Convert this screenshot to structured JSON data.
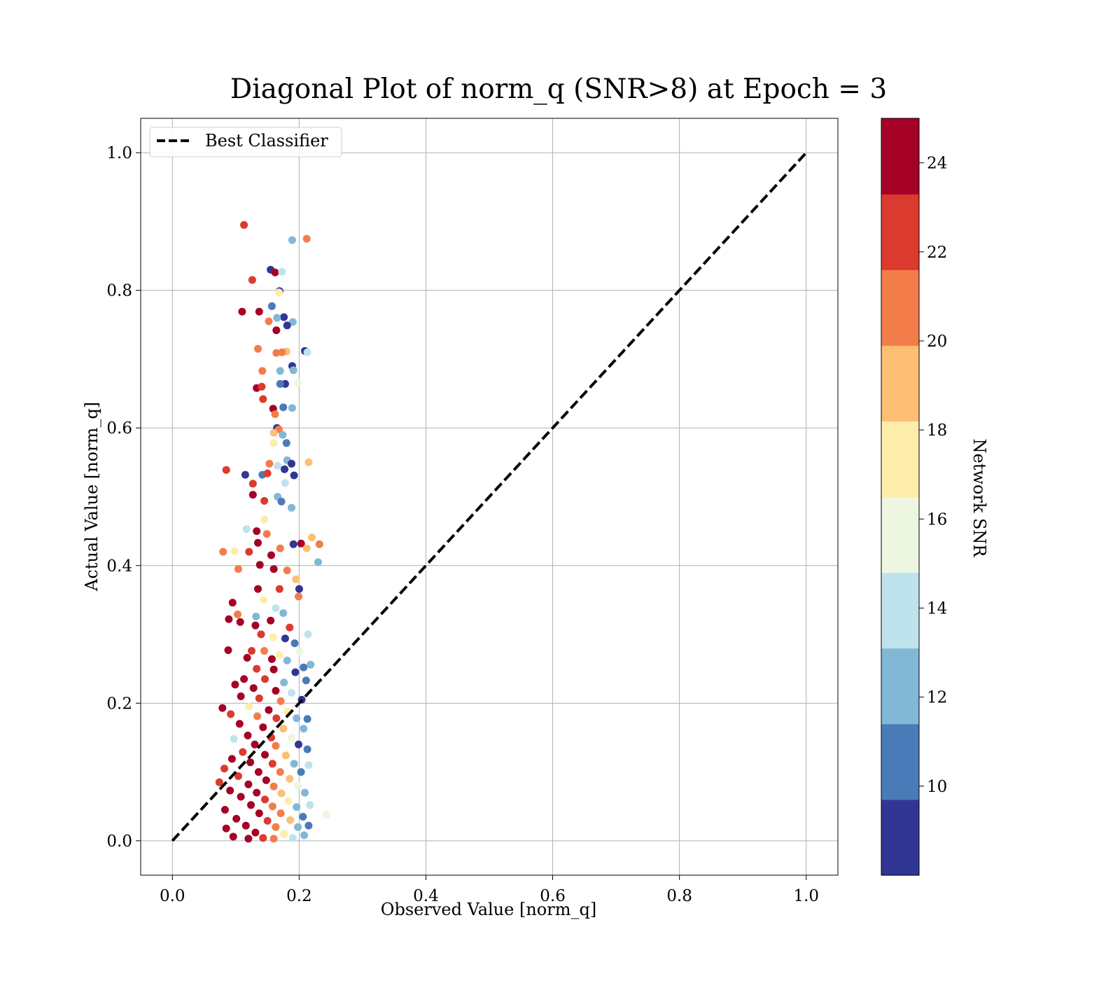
{
  "chart_data": {
    "type": "scatter",
    "title": "Diagonal Plot of norm_q (SNR>8) at Epoch = 3",
    "xlabel": "Observed Value [norm_q]",
    "ylabel": "Actual Value [norm_q]",
    "xlim": [
      -0.05,
      1.05
    ],
    "ylim": [
      -0.05,
      1.05
    ],
    "x_ticks": [
      0.0,
      0.2,
      0.4,
      0.6,
      0.8,
      1.0
    ],
    "y_ticks": [
      0.0,
      0.2,
      0.4,
      0.6,
      0.8,
      1.0
    ],
    "x_tick_labels": [
      "0.0",
      "0.2",
      "0.4",
      "0.6",
      "0.8",
      "1.0"
    ],
    "y_tick_labels": [
      "0.0",
      "0.2",
      "0.4",
      "0.6",
      "0.8",
      "1.0"
    ],
    "grid": true,
    "legend": {
      "placement": "top-left",
      "entries": [
        {
          "label": "Best Classifier",
          "style": "dashed",
          "color": "#000000"
        }
      ]
    },
    "reference_line": {
      "label": "Best Classifier",
      "points": [
        [
          0.0,
          0.0
        ],
        [
          1.0,
          1.0
        ]
      ]
    },
    "colorbar": {
      "label": "Network SNR",
      "range": [
        8,
        25
      ],
      "ticks": [
        10,
        12,
        14,
        16,
        18,
        20,
        22,
        24
      ],
      "tick_labels": [
        "10",
        "12",
        "14",
        "16",
        "18",
        "20",
        "22",
        "24"
      ],
      "colors": [
        "#313695",
        "#4a7ab7",
        "#82b7d6",
        "#bee3ec",
        "#ecf6e1",
        "#fdedaa",
        "#fcbf73",
        "#f37d4a",
        "#db3a2e",
        "#a50026"
      ]
    },
    "series": [
      {
        "x_range_dense": [
          0.08,
          0.22
        ],
        "points": [
          [
            0.113,
            0.895,
            22.5
          ],
          [
            0.212,
            0.875,
            20.5
          ],
          [
            0.189,
            0.873,
            12.5
          ],
          [
            0.155,
            0.83,
            9
          ],
          [
            0.162,
            0.826,
            24.5
          ],
          [
            0.173,
            0.827,
            14.5
          ],
          [
            0.126,
            0.815,
            22.5
          ],
          [
            0.169,
            0.799,
            9
          ],
          [
            0.168,
            0.797,
            17.5
          ],
          [
            0.157,
            0.777,
            10.5
          ],
          [
            0.11,
            0.769,
            24.5
          ],
          [
            0.137,
            0.769,
            24.5
          ],
          [
            0.176,
            0.761,
            9
          ],
          [
            0.165,
            0.76,
            13
          ],
          [
            0.19,
            0.754,
            12.5
          ],
          [
            0.152,
            0.755,
            20.5
          ],
          [
            0.181,
            0.749,
            9
          ],
          [
            0.164,
            0.742,
            24.5
          ],
          [
            0.135,
            0.715,
            20.5
          ],
          [
            0.209,
            0.712,
            9
          ],
          [
            0.213,
            0.71,
            14
          ],
          [
            0.18,
            0.711,
            19.5
          ],
          [
            0.173,
            0.71,
            20.5
          ],
          [
            0.164,
            0.709,
            20.5
          ],
          [
            0.189,
            0.69,
            9
          ],
          [
            0.17,
            0.683,
            12.5
          ],
          [
            0.191,
            0.684,
            12.5
          ],
          [
            0.142,
            0.683,
            20.5
          ],
          [
            0.198,
            0.665,
            16
          ],
          [
            0.178,
            0.664,
            9
          ],
          [
            0.17,
            0.664,
            10
          ],
          [
            0.133,
            0.658,
            24.5
          ],
          [
            0.141,
            0.66,
            22.5
          ],
          [
            0.143,
            0.642,
            22.5
          ],
          [
            0.175,
            0.63,
            10
          ],
          [
            0.189,
            0.629,
            12.5
          ],
          [
            0.159,
            0.628,
            24.5
          ],
          [
            0.162,
            0.62,
            20.5
          ],
          [
            0.165,
            0.6,
            9
          ],
          [
            0.168,
            0.598,
            20.5
          ],
          [
            0.16,
            0.593,
            19.5
          ],
          [
            0.174,
            0.59,
            12.5
          ],
          [
            0.18,
            0.578,
            10.5
          ],
          [
            0.16,
            0.578,
            17.5
          ],
          [
            0.215,
            0.55,
            19.5
          ],
          [
            0.181,
            0.553,
            12.5
          ],
          [
            0.153,
            0.548,
            20.5
          ],
          [
            0.166,
            0.545,
            14.5
          ],
          [
            0.188,
            0.548,
            9
          ],
          [
            0.085,
            0.539,
            22.5
          ],
          [
            0.115,
            0.532,
            9
          ],
          [
            0.142,
            0.532,
            11
          ],
          [
            0.15,
            0.534,
            22.5
          ],
          [
            0.177,
            0.54,
            9
          ],
          [
            0.192,
            0.531,
            9
          ],
          [
            0.127,
            0.519,
            22.5
          ],
          [
            0.178,
            0.52,
            14.5
          ],
          [
            0.127,
            0.503,
            24.5
          ],
          [
            0.145,
            0.494,
            22.5
          ],
          [
            0.166,
            0.5,
            12.5
          ],
          [
            0.188,
            0.484,
            12.5
          ],
          [
            0.172,
            0.493,
            10
          ],
          [
            0.145,
            0.467,
            17.5
          ],
          [
            0.117,
            0.453,
            14
          ],
          [
            0.133,
            0.45,
            24.5
          ],
          [
            0.149,
            0.446,
            20.5
          ],
          [
            0.191,
            0.431,
            9
          ],
          [
            0.203,
            0.432,
            24.5
          ],
          [
            0.22,
            0.441,
            19.5
          ],
          [
            0.232,
            0.431,
            20.5
          ],
          [
            0.23,
            0.405,
            12.5
          ],
          [
            0.08,
            0.42,
            20.5
          ],
          [
            0.098,
            0.421,
            17.5
          ],
          [
            0.121,
            0.42,
            22.5
          ],
          [
            0.135,
            0.433,
            24.5
          ],
          [
            0.156,
            0.415,
            24.5
          ],
          [
            0.17,
            0.425,
            20.5
          ],
          [
            0.212,
            0.425,
            19.5
          ],
          [
            0.138,
            0.401,
            24.5
          ],
          [
            0.16,
            0.395,
            24.5
          ],
          [
            0.104,
            0.395,
            20.5
          ],
          [
            0.181,
            0.393,
            20.5
          ],
          [
            0.195,
            0.38,
            19.5
          ],
          [
            0.169,
            0.366,
            22.5
          ],
          [
            0.135,
            0.366,
            24.5
          ],
          [
            0.2,
            0.366,
            9
          ],
          [
            0.144,
            0.35,
            17.5
          ],
          [
            0.095,
            0.346,
            24.5
          ],
          [
            0.199,
            0.355,
            20.5
          ],
          [
            0.163,
            0.338,
            14
          ],
          [
            0.175,
            0.331,
            12.5
          ],
          [
            0.103,
            0.329,
            20.5
          ],
          [
            0.132,
            0.326,
            13
          ],
          [
            0.155,
            0.32,
            24.5
          ],
          [
            0.089,
            0.322,
            24.5
          ],
          [
            0.107,
            0.318,
            24.5
          ],
          [
            0.131,
            0.313,
            24.5
          ],
          [
            0.185,
            0.31,
            22.5
          ],
          [
            0.214,
            0.3,
            14
          ],
          [
            0.14,
            0.3,
            22.5
          ],
          [
            0.159,
            0.296,
            17.5
          ],
          [
            0.178,
            0.294,
            9
          ],
          [
            0.193,
            0.287,
            10.5
          ],
          [
            0.088,
            0.277,
            24.5
          ],
          [
            0.125,
            0.276,
            22.5
          ],
          [
            0.145,
            0.276,
            20.5
          ],
          [
            0.169,
            0.27,
            17.5
          ],
          [
            0.201,
            0.275,
            15
          ],
          [
            0.218,
            0.256,
            12.5
          ],
          [
            0.118,
            0.266,
            24.5
          ],
          [
            0.157,
            0.264,
            24.5
          ],
          [
            0.181,
            0.262,
            12.5
          ],
          [
            0.207,
            0.252,
            11
          ],
          [
            0.133,
            0.25,
            22.5
          ],
          [
            0.16,
            0.249,
            24.5
          ],
          [
            0.194,
            0.245,
            9
          ],
          [
            0.113,
            0.235,
            24.5
          ],
          [
            0.146,
            0.235,
            22.5
          ],
          [
            0.176,
            0.23,
            12.5
          ],
          [
            0.211,
            0.233,
            10
          ],
          [
            0.099,
            0.227,
            24.5
          ],
          [
            0.128,
            0.222,
            24.5
          ],
          [
            0.163,
            0.218,
            24.5
          ],
          [
            0.188,
            0.215,
            14
          ],
          [
            0.108,
            0.21,
            24.5
          ],
          [
            0.137,
            0.207,
            22.5
          ],
          [
            0.171,
            0.203,
            20.5
          ],
          [
            0.204,
            0.205,
            9
          ],
          [
            0.079,
            0.193,
            24.5
          ],
          [
            0.121,
            0.195,
            17.5
          ],
          [
            0.152,
            0.19,
            24.5
          ],
          [
            0.182,
            0.188,
            17.5
          ],
          [
            0.092,
            0.184,
            22.5
          ],
          [
            0.134,
            0.181,
            20.5
          ],
          [
            0.164,
            0.178,
            22.5
          ],
          [
            0.196,
            0.178,
            12.5
          ],
          [
            0.213,
            0.177,
            10.5
          ],
          [
            0.106,
            0.17,
            24.5
          ],
          [
            0.143,
            0.165,
            24.5
          ],
          [
            0.175,
            0.163,
            18.5
          ],
          [
            0.207,
            0.163,
            12.5
          ],
          [
            0.119,
            0.153,
            24.5
          ],
          [
            0.156,
            0.15,
            22.5
          ],
          [
            0.188,
            0.15,
            16
          ],
          [
            0.097,
            0.148,
            14.5
          ],
          [
            0.13,
            0.14,
            24.5
          ],
          [
            0.163,
            0.138,
            20.5
          ],
          [
            0.199,
            0.14,
            9
          ],
          [
            0.213,
            0.133,
            10
          ],
          [
            0.111,
            0.129,
            22.5
          ],
          [
            0.146,
            0.125,
            24.5
          ],
          [
            0.179,
            0.124,
            19.5
          ],
          [
            0.094,
            0.119,
            24.5
          ],
          [
            0.123,
            0.114,
            24.5
          ],
          [
            0.158,
            0.112,
            22.5
          ],
          [
            0.192,
            0.112,
            12.5
          ],
          [
            0.215,
            0.11,
            14
          ],
          [
            0.082,
            0.105,
            22.5
          ],
          [
            0.136,
            0.1,
            24.5
          ],
          [
            0.17,
            0.1,
            20.5
          ],
          [
            0.203,
            0.1,
            11
          ],
          [
            0.104,
            0.094,
            22.5
          ],
          [
            0.148,
            0.088,
            24.5
          ],
          [
            0.185,
            0.09,
            19.5
          ],
          [
            0.074,
            0.085,
            22.5
          ],
          [
            0.12,
            0.082,
            24.5
          ],
          [
            0.16,
            0.079,
            20.5
          ],
          [
            0.198,
            0.08,
            15
          ],
          [
            0.091,
            0.073,
            24.5
          ],
          [
            0.133,
            0.07,
            24.5
          ],
          [
            0.172,
            0.069,
            19.5
          ],
          [
            0.209,
            0.07,
            12.5
          ],
          [
            0.108,
            0.064,
            24.5
          ],
          [
            0.146,
            0.06,
            22.5
          ],
          [
            0.183,
            0.058,
            17.5
          ],
          [
            0.243,
            0.038,
            16
          ],
          [
            0.124,
            0.052,
            24.5
          ],
          [
            0.158,
            0.05,
            20.5
          ],
          [
            0.196,
            0.049,
            13
          ],
          [
            0.217,
            0.052,
            14
          ],
          [
            0.083,
            0.045,
            24.5
          ],
          [
            0.137,
            0.04,
            24.5
          ],
          [
            0.171,
            0.04,
            20.5
          ],
          [
            0.206,
            0.035,
            11
          ],
          [
            0.101,
            0.032,
            24.5
          ],
          [
            0.15,
            0.029,
            22.5
          ],
          [
            0.186,
            0.03,
            19.5
          ],
          [
            0.116,
            0.022,
            24.5
          ],
          [
            0.163,
            0.02,
            20.5
          ],
          [
            0.198,
            0.02,
            12.5
          ],
          [
            0.215,
            0.022,
            10
          ],
          [
            0.085,
            0.018,
            24.5
          ],
          [
            0.131,
            0.012,
            24.5
          ],
          [
            0.176,
            0.01,
            17.5
          ],
          [
            0.208,
            0.008,
            12.5
          ],
          [
            0.096,
            0.006,
            24.5
          ],
          [
            0.143,
            0.004,
            22.5
          ],
          [
            0.12,
            0.003,
            24.5
          ],
          [
            0.16,
            0.003,
            20.5
          ],
          [
            0.19,
            0.004,
            14.5
          ]
        ]
      }
    ]
  }
}
